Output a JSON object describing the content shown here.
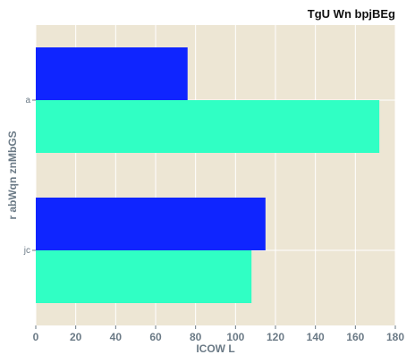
{
  "chart_data": {
    "type": "bar",
    "orientation": "horizontal",
    "title": "TgU  Wn bpjBEg",
    "xlabel": "ICOW  L",
    "ylabel": "r abWqn znMbGS",
    "categories": [
      "a",
      "jc"
    ],
    "series": [
      {
        "values": [
          76,
          115
        ],
        "color": "#0f25ff"
      },
      {
        "values": [
          172,
          108
        ],
        "color": "#30ffc4"
      }
    ],
    "xlim": [
      0,
      180
    ],
    "xticks": [
      0,
      20,
      40,
      60,
      80,
      100,
      120,
      140,
      160,
      180
    ],
    "grid": true,
    "background_color": "#ede6d4",
    "grid_color": "#ffffff",
    "text_color": "#6b7a86"
  }
}
